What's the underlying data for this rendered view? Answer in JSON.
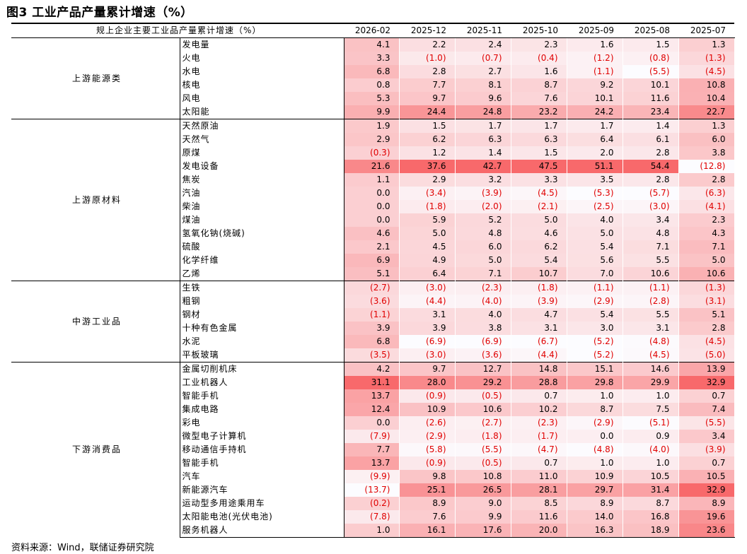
{
  "title": "图3   工业产品产量累计增速（%）",
  "source": "资料来源：Wind，联储证券研究院",
  "table": {
    "header_name": "规上企业主要工业品产量累计增速（%）",
    "columns": [
      "2026-02",
      "2025-12",
      "2025-11",
      "2025-10",
      "2025-09",
      "2025-08",
      "2025-07"
    ],
    "groups": [
      {
        "category": "上游能源类",
        "rows": [
          {
            "name": "发电量",
            "values": [
              4.1,
              2.2,
              2.4,
              2.3,
              1.6,
              1.5,
              1.3
            ]
          },
          {
            "name": "火电",
            "values": [
              3.3,
              -1.0,
              -0.7,
              -0.4,
              -1.2,
              -0.8,
              -1.3
            ]
          },
          {
            "name": "水电",
            "values": [
              6.8,
              2.8,
              2.7,
              1.6,
              -1.1,
              -5.5,
              -4.5
            ]
          },
          {
            "name": "核电",
            "values": [
              0.8,
              7.7,
              8.1,
              8.7,
              9.2,
              10.1,
              10.8
            ]
          },
          {
            "name": "风电",
            "values": [
              5.3,
              9.7,
              9.6,
              7.6,
              10.1,
              11.6,
              10.4
            ]
          },
          {
            "name": "太阳能",
            "values": [
              9.9,
              24.4,
              24.8,
              23.2,
              24.2,
              23.4,
              22.7
            ]
          }
        ]
      },
      {
        "category": "上游原材料",
        "rows": [
          {
            "name": "天然原油",
            "values": [
              1.9,
              1.5,
              1.7,
              1.7,
              1.7,
              1.4,
              1.3
            ]
          },
          {
            "name": "天然气",
            "values": [
              2.9,
              6.2,
              6.3,
              6.3,
              6.4,
              6.1,
              6.0
            ]
          },
          {
            "name": "原煤",
            "values": [
              -0.3,
              1.2,
              1.4,
              1.5,
              2.0,
              2.8,
              3.8
            ]
          },
          {
            "name": "发电设备",
            "values": [
              21.6,
              37.6,
              42.7,
              47.5,
              51.1,
              54.4,
              -12.8
            ]
          },
          {
            "name": "焦炭",
            "values": [
              1.1,
              2.9,
              3.2,
              3.3,
              3.5,
              2.8,
              2.8
            ]
          },
          {
            "name": "汽油",
            "values": [
              0.0,
              -3.4,
              -3.9,
              -4.5,
              -5.3,
              -5.7,
              -6.3
            ]
          },
          {
            "name": "柴油",
            "values": [
              0.0,
              -1.8,
              -2.0,
              -2.1,
              -2.5,
              -3.0,
              -4.1
            ]
          },
          {
            "name": "煤油",
            "values": [
              0.0,
              5.9,
              5.2,
              5.0,
              4.0,
              3.4,
              2.3
            ]
          },
          {
            "name": "氢氧化钠(烧碱)",
            "values": [
              4.6,
              5.0,
              4.8,
              4.6,
              5.0,
              4.8,
              4.3
            ]
          },
          {
            "name": "硫酸",
            "values": [
              2.1,
              4.5,
              6.0,
              6.2,
              5.4,
              7.1,
              7.1
            ]
          },
          {
            "name": "化学纤维",
            "values": [
              6.9,
              4.9,
              5.0,
              5.4,
              5.6,
              5.5,
              5.0
            ]
          },
          {
            "name": "乙烯",
            "values": [
              5.1,
              6.4,
              7.1,
              10.7,
              7.0,
              10.6,
              10.6
            ]
          }
        ]
      },
      {
        "category": "中游工业品",
        "rows": [
          {
            "name": "生铁",
            "values": [
              -2.7,
              -3.0,
              -2.3,
              -1.8,
              -1.1,
              -1.1,
              -1.3
            ]
          },
          {
            "name": "粗钢",
            "values": [
              -3.6,
              -4.4,
              -4.0,
              -3.9,
              -2.9,
              -2.8,
              -3.1
            ]
          },
          {
            "name": "钢材",
            "values": [
              -1.1,
              3.1,
              4.0,
              4.7,
              5.4,
              5.5,
              5.1
            ]
          },
          {
            "name": "十种有色金属",
            "values": [
              3.9,
              3.9,
              3.8,
              3.1,
              3.0,
              3.1,
              2.8
            ]
          },
          {
            "name": "水泥",
            "values": [
              6.8,
              -6.9,
              -6.9,
              -6.7,
              -5.2,
              -4.8,
              -4.5
            ]
          },
          {
            "name": "平板玻璃",
            "values": [
              -3.5,
              -3.0,
              -3.6,
              -4.4,
              -5.2,
              -4.5,
              -5.0
            ]
          }
        ]
      },
      {
        "category": "下游消费品",
        "rows": [
          {
            "name": "金属切削机床",
            "values": [
              4.2,
              9.7,
              12.7,
              14.8,
              15.1,
              14.6,
              13.9
            ]
          },
          {
            "name": "工业机器人",
            "values": [
              31.1,
              28.0,
              29.2,
              28.8,
              29.8,
              29.9,
              32.9
            ]
          },
          {
            "name": "智能手机",
            "values": [
              13.7,
              -0.9,
              -0.5,
              0.7,
              1.0,
              1.0,
              0.7
            ]
          },
          {
            "name": "集成电路",
            "values": [
              12.4,
              10.9,
              10.6,
              10.2,
              8.7,
              7.5,
              7.4
            ]
          },
          {
            "name": "彩电",
            "values": [
              0.0,
              -2.6,
              -2.7,
              -2.3,
              -2.9,
              -5.1,
              -5.5
            ]
          },
          {
            "name": "微型电子计算机",
            "values": [
              -7.9,
              -2.9,
              -1.8,
              -1.7,
              0.0,
              0.9,
              3.4
            ]
          },
          {
            "name": "移动通信手持机",
            "values": [
              7.7,
              -5.8,
              -5.5,
              -4.7,
              -4.8,
              -4.0,
              -3.9
            ]
          },
          {
            "name": "智能手机",
            "values": [
              13.7,
              -0.9,
              -0.5,
              0.7,
              1.0,
              1.0,
              0.7
            ]
          },
          {
            "name": "汽车",
            "values": [
              -9.9,
              9.8,
              10.8,
              11.0,
              10.9,
              10.5,
              10.5
            ]
          },
          {
            "name": "新能源汽车",
            "values": [
              -13.7,
              25.1,
              26.5,
              28.1,
              29.7,
              31.4,
              32.9
            ]
          },
          {
            "name": "运动型多用途乘用车",
            "values": [
              -0.2,
              8.9,
              9.0,
              8.5,
              8.9,
              8.7,
              8.9
            ]
          },
          {
            "name": "太阳能电池(光伏电池)",
            "values": [
              -7.8,
              7.6,
              9.9,
              11.6,
              14.0,
              16.8,
              19.6
            ]
          },
          {
            "name": "服务机器人",
            "values": [
              1.0,
              16.1,
              17.6,
              20.0,
              16.3,
              18.9,
              23.6
            ]
          }
        ]
      }
    ]
  },
  "colors": {
    "negative_text": "#e00000",
    "heat_high": "#f8696b",
    "heat_low": "#fcfcff"
  }
}
